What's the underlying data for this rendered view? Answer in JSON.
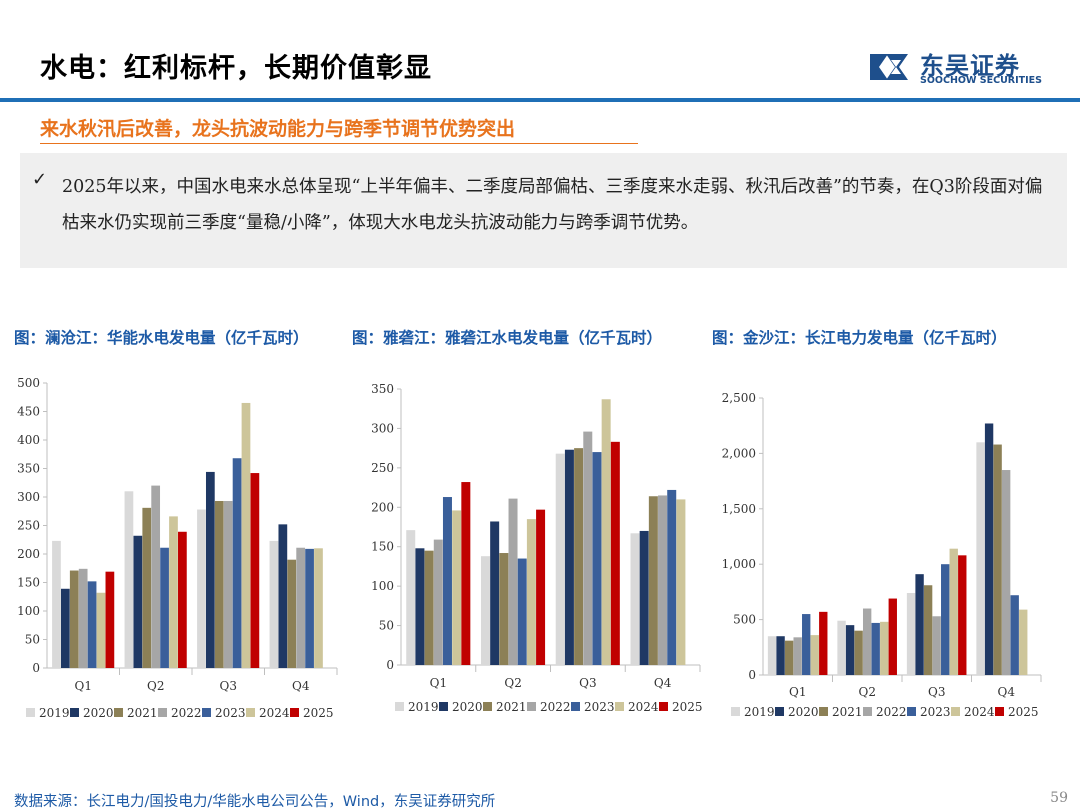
{
  "header": {
    "title": "水电：红利标杆，长期价值彰显",
    "logo_cn": "东吴证券",
    "logo_en": "SOOCHOW SECURITIES"
  },
  "subtitle": "来水秋汛后改善，龙头抗波动能力与跨季节调节优势突出",
  "note": {
    "check": "✓",
    "text": "2025年以来，中国水电来水总体呈现“上半年偏丰、二季度局部偏枯、三季度来水走弱、秋汛后改善”的节奏，在Q3阶段面对偏枯来水仍实现前三季度“量稳/小降”，体现大水电龙头抗波动能力与跨季调节优势。"
  },
  "captions": [
    "图：澜沧江：华能水电发电量（亿千瓦时）",
    "图：雅砻江：雅砻江水电发电量（亿千瓦时）",
    "图：金沙江：长江电力发电量（亿千瓦时）"
  ],
  "colors": {
    "2019": "#d9d9d9",
    "2020": "#1f3864",
    "2021": "#8c8056",
    "2022": "#a6a6a6",
    "2023": "#3a5f9a",
    "2024": "#cdc59a",
    "2025": "#c00000"
  },
  "chart_data": [
    {
      "type": "bar",
      "title": "澜沧江：华能水电发电量（亿千瓦时）",
      "categories": [
        "Q1",
        "Q2",
        "Q3",
        "Q4"
      ],
      "ylim": [
        0,
        500
      ],
      "yticks": [
        0,
        50,
        100,
        150,
        200,
        250,
        300,
        350,
        400,
        450,
        500
      ],
      "yformat": "plain",
      "legend": "bottom",
      "series": [
        {
          "name": "2019",
          "values": [
            223,
            310,
            278,
            223
          ]
        },
        {
          "name": "2020",
          "values": [
            139,
            232,
            344,
            252
          ]
        },
        {
          "name": "2021",
          "values": [
            171,
            281,
            293,
            190
          ]
        },
        {
          "name": "2022",
          "values": [
            174,
            320,
            293,
            211
          ]
        },
        {
          "name": "2023",
          "values": [
            152,
            211,
            368,
            209
          ]
        },
        {
          "name": "2024",
          "values": [
            132,
            266,
            465,
            210
          ]
        },
        {
          "name": "2025",
          "values": [
            169,
            239,
            342,
            null
          ]
        }
      ]
    },
    {
      "type": "bar",
      "title": "雅砻江：雅砻江水电发电量（亿千瓦时）",
      "categories": [
        "Q1",
        "Q2",
        "Q3",
        "Q4"
      ],
      "ylim": [
        0,
        350
      ],
      "yticks": [
        0,
        50,
        100,
        150,
        200,
        250,
        300,
        350
      ],
      "yformat": "plain",
      "legend": "bottom",
      "series": [
        {
          "name": "2019",
          "values": [
            171,
            138,
            268,
            167
          ]
        },
        {
          "name": "2020",
          "values": [
            148,
            182,
            273,
            170
          ]
        },
        {
          "name": "2021",
          "values": [
            145,
            142,
            275,
            214
          ]
        },
        {
          "name": "2022",
          "values": [
            159,
            211,
            296,
            215
          ]
        },
        {
          "name": "2023",
          "values": [
            213,
            135,
            270,
            222
          ]
        },
        {
          "name": "2024",
          "values": [
            196,
            185,
            337,
            210
          ]
        },
        {
          "name": "2025",
          "values": [
            232,
            197,
            283,
            null
          ]
        }
      ]
    },
    {
      "type": "bar",
      "title": "金沙江：长江电力发电量（亿千瓦时）",
      "categories": [
        "Q1",
        "Q2",
        "Q3",
        "Q4"
      ],
      "ylim": [
        0,
        2500
      ],
      "yticks": [
        0,
        500,
        1000,
        1500,
        2000,
        2500
      ],
      "yformat": "comma",
      "legend": "bottom",
      "series": [
        {
          "name": "2019",
          "values": [
            350,
            490,
            740,
            2100
          ]
        },
        {
          "name": "2020",
          "values": [
            350,
            450,
            910,
            2270
          ]
        },
        {
          "name": "2021",
          "values": [
            310,
            400,
            810,
            2080
          ]
        },
        {
          "name": "2022",
          "values": [
            340,
            600,
            530,
            1850
          ]
        },
        {
          "name": "2023",
          "values": [
            550,
            470,
            1000,
            720
          ]
        },
        {
          "name": "2024",
          "values": [
            360,
            480,
            1140,
            590
          ]
        },
        {
          "name": "2025",
          "values": [
            570,
            690,
            1080,
            null
          ]
        }
      ]
    }
  ],
  "footer": {
    "source": "数据来源：长江电力/国投电力/华能水电公司公告，Wind，东吴证券研究所",
    "page": "59"
  }
}
